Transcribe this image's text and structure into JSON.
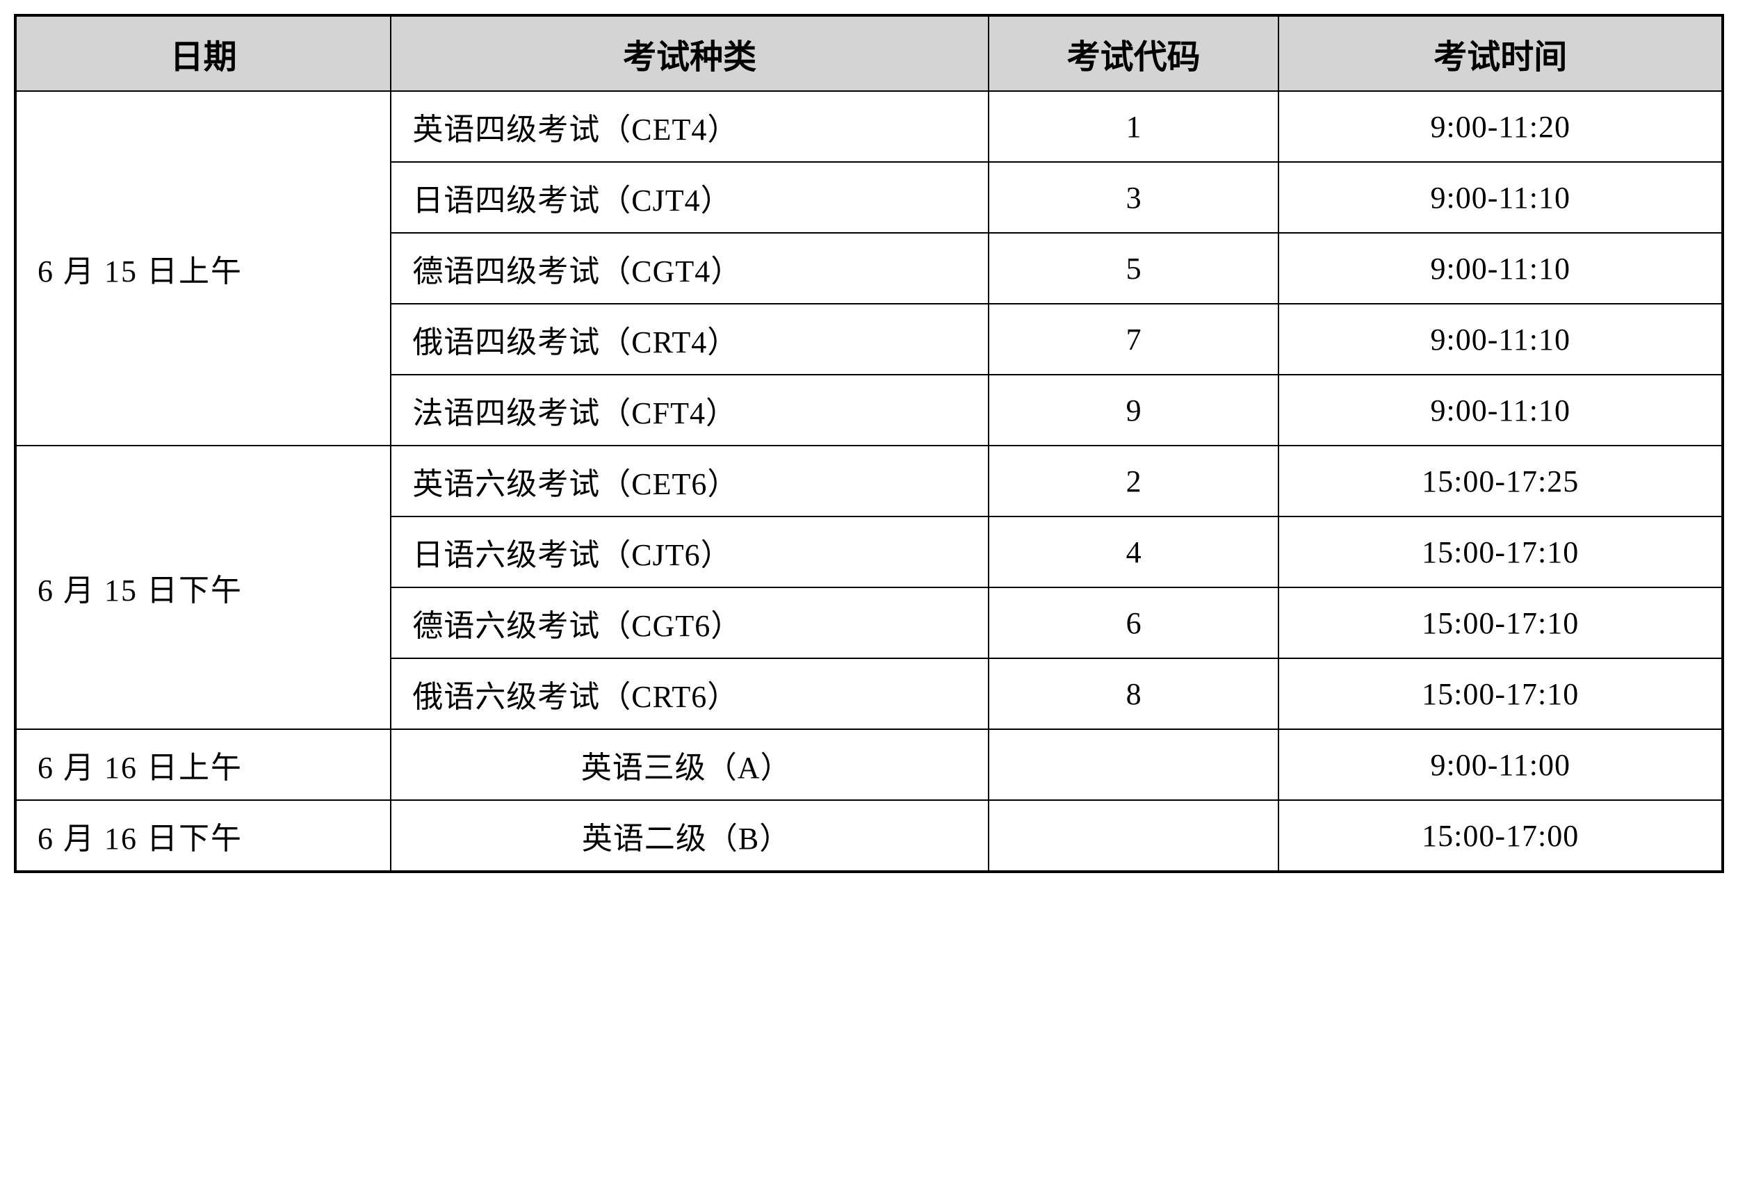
{
  "table": {
    "columns": [
      "日期",
      "考试种类",
      "考试代码",
      "考试时间"
    ],
    "column_widths": [
      "22%",
      "35%",
      "17%",
      "26%"
    ],
    "header_bg": "#d4d4d4",
    "border_color": "#000000",
    "outer_border_width": 4,
    "inner_border_width": 2,
    "header_fontsize": 48,
    "cell_fontsize": 44,
    "groups": [
      {
        "date": "6 月 15 日上午",
        "rowspan": 5,
        "rows": [
          {
            "type": "英语四级考试（CET4）",
            "code": "1",
            "time": "9:00-11:20"
          },
          {
            "type": "日语四级考试（CJT4）",
            "code": "3",
            "time": "9:00-11:10"
          },
          {
            "type": "德语四级考试（CGT4）",
            "code": "5",
            "time": "9:00-11:10"
          },
          {
            "type": "俄语四级考试（CRT4）",
            "code": "7",
            "time": "9:00-11:10"
          },
          {
            "type": "法语四级考试（CFT4）",
            "code": "9",
            "time": "9:00-11:10"
          }
        ]
      },
      {
        "date": "6 月 15 日下午",
        "rowspan": 4,
        "rows": [
          {
            "type": "英语六级考试（CET6）",
            "code": "2",
            "time": "15:00-17:25"
          },
          {
            "type": "日语六级考试（CJT6）",
            "code": "4",
            "time": "15:00-17:10"
          },
          {
            "type": "德语六级考试（CGT6）",
            "code": "6",
            "time": "15:00-17:10"
          },
          {
            "type": "俄语六级考试（CRT6）",
            "code": "8",
            "time": "15:00-17:10"
          }
        ]
      },
      {
        "date": "6 月 16 日上午",
        "rowspan": 1,
        "rows": [
          {
            "type": "英语三级（A）",
            "type_center": true,
            "code": "",
            "time": "9:00-11:00"
          }
        ]
      },
      {
        "date": "6 月 16 日下午",
        "rowspan": 1,
        "rows": [
          {
            "type": "英语二级（B）",
            "type_center": true,
            "code": "",
            "time": "15:00-17:00"
          }
        ]
      }
    ]
  }
}
